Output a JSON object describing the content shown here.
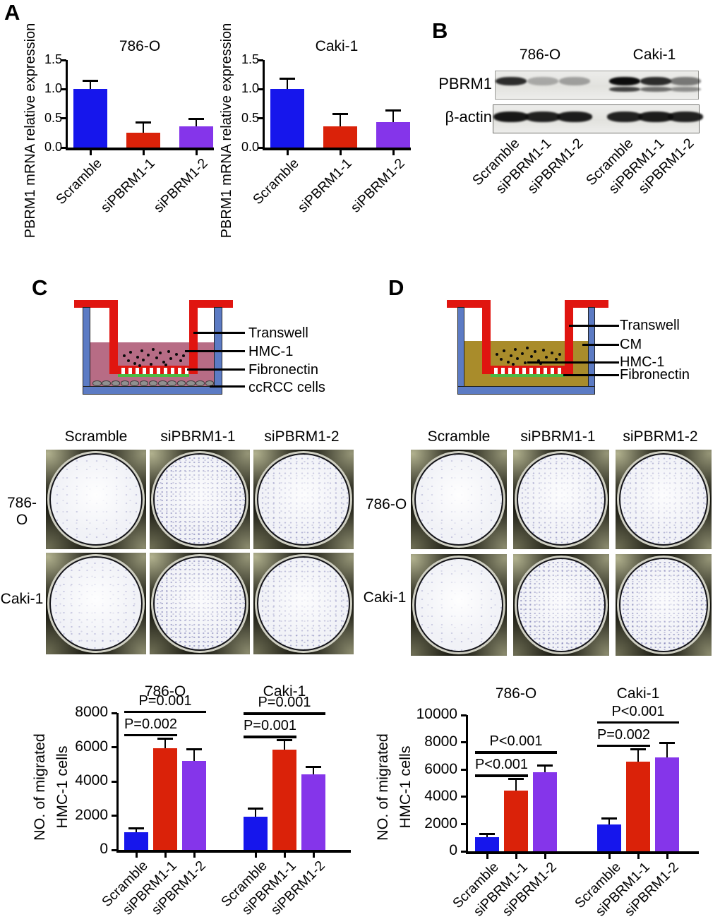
{
  "colors": {
    "bar_blue": "#1616ec",
    "bar_red": "#da2209",
    "bar_purple": "#8535ea",
    "well_blue": "#5c7bc4",
    "insert_red": "#e01510",
    "medium_pink": "#b76c85",
    "medium_cm": "#a98c2b",
    "fibronectin_green": "#4cb944",
    "ccrcc_gray": "#909090"
  },
  "panels": {
    "A": {
      "label": "A"
    },
    "B": {
      "label": "B",
      "cell_lines": [
        "786-O",
        "Caki-1"
      ],
      "blot_rows": [
        {
          "label": "PBRM1",
          "bands": [
            [
              0.85
            ],
            [
              0.28
            ],
            [
              0.32
            ],
            [
              1.0,
              0.75
            ],
            [
              0.85,
              0.55
            ],
            [
              0.5,
              0.4
            ]
          ]
        },
        {
          "label": "β-actin",
          "bands": [
            [
              0.95
            ],
            [
              0.9
            ],
            [
              0.92
            ],
            [
              0.9
            ],
            [
              0.93
            ],
            [
              0.9
            ]
          ]
        }
      ],
      "lane_labels": [
        "Scramble",
        "siPBRM1-1",
        "siPBRM1-2",
        "Scramble",
        "siPBRM1-1",
        "siPBRM1-2"
      ]
    },
    "C": {
      "label": "C",
      "diagram_labels": [
        "Transwell",
        "HMC-1",
        "Fibronectin",
        "ccRCC cells"
      ],
      "grid": {
        "col_headers": [
          "Scramble",
          "siPBRM1-1",
          "siPBRM1-2"
        ],
        "row_labels": [
          "786-O",
          "Caki-1"
        ],
        "well_densities": [
          [
            "low",
            "high",
            "medium-high"
          ],
          [
            "medium",
            "high",
            "medium-high"
          ]
        ]
      }
    },
    "D": {
      "label": "D",
      "diagram_labels": [
        "Transwell",
        "CM",
        "HMC-1",
        "Fibronectin"
      ],
      "grid": {
        "col_headers": [
          "Scramble",
          "siPBRM1-1",
          "siPBRM1-2"
        ],
        "row_labels": [
          "786-O",
          "Caki-1"
        ],
        "well_densities": [
          [
            "low",
            "medium-high",
            "medium-high"
          ],
          [
            "low",
            "high",
            "high"
          ]
        ]
      }
    }
  },
  "chart_data": [
    {
      "id": "A-786-O",
      "type": "bar",
      "title": "786-O",
      "ylabel": "PBRM1 mRNA relative expression",
      "ylim": [
        0,
        1.5
      ],
      "yticks": [
        0,
        0.5,
        1,
        1.5
      ],
      "ytick_labels": [
        "0.0",
        "0.5",
        "1.0",
        "1.5"
      ],
      "bar_colors": [
        "#1616ec",
        "#da2209",
        "#8535ea"
      ],
      "groups": [
        {
          "categories": [
            "Scramble",
            "siPBRM1-1",
            "siPBRM1-2"
          ],
          "values": [
            1.0,
            0.25,
            0.36
          ],
          "errors": [
            0.13,
            0.16,
            0.11
          ]
        }
      ]
    },
    {
      "id": "A-Caki-1",
      "type": "bar",
      "title": "Caki-1",
      "ylabel": "PBRM1 mRNA relative expression",
      "ylim": [
        0,
        1.5
      ],
      "yticks": [
        0,
        0.5,
        1,
        1.5
      ],
      "ytick_labels": [
        "0.0",
        "0.5",
        "1.0",
        "1.5"
      ],
      "bar_colors": [
        "#1616ec",
        "#da2209",
        "#8535ea"
      ],
      "groups": [
        {
          "categories": [
            "Scramble",
            "siPBRM1-1",
            "siPBRM1-2"
          ],
          "values": [
            1.0,
            0.36,
            0.43
          ],
          "errors": [
            0.16,
            0.2,
            0.19
          ]
        }
      ]
    },
    {
      "id": "C-migration",
      "type": "grouped-bar",
      "ylabel_lines": [
        "NO. of migrated",
        "HMC-1 cells"
      ],
      "ylim": [
        0,
        8000
      ],
      "yticks": [
        0,
        2000,
        4000,
        6000,
        8000
      ],
      "ytick_labels": [
        "0",
        "2000",
        "4000",
        "6000",
        "8000"
      ],
      "bar_colors": [
        "#1616ec",
        "#da2209",
        "#8535ea"
      ],
      "groups": [
        {
          "title": "786-O",
          "categories": [
            "Scramble",
            "siPBRM1-1",
            "siPBRM1-2"
          ],
          "values": [
            1050,
            5950,
            5200
          ],
          "errors": [
            150,
            500,
            610
          ],
          "sig": [
            {
              "text": "P=0.001",
              "span": [
                0,
                2
              ]
            },
            {
              "text": "P=0.002",
              "span": [
                0,
                1
              ]
            }
          ]
        },
        {
          "title": "Caki-1",
          "categories": [
            "Scramble",
            "siPBRM1-1",
            "siPBRM1-2"
          ],
          "values": [
            1950,
            5850,
            4400
          ],
          "errors": [
            400,
            500,
            400
          ],
          "sig": [
            {
              "text": "P=0.001",
              "span": [
                0,
                2
              ]
            },
            {
              "text": "P=0.001",
              "span": [
                0,
                1
              ]
            }
          ]
        }
      ]
    },
    {
      "id": "D-migration",
      "type": "grouped-bar",
      "ylabel_lines": [
        "NO. of migrated",
        "HMC-1 cells"
      ],
      "ylim": [
        0,
        10000
      ],
      "yticks": [
        0,
        2000,
        4000,
        6000,
        8000,
        10000
      ],
      "ytick_labels": [
        "0",
        "2000",
        "4000",
        "6000",
        "8000",
        "10000"
      ],
      "bar_colors": [
        "#1616ec",
        "#da2209",
        "#8535ea"
      ],
      "groups": [
        {
          "title": "786-O",
          "categories": [
            "Scramble",
            "siPBRM1-1",
            "siPBRM1-2"
          ],
          "values": [
            1050,
            4450,
            5780
          ],
          "errors": [
            150,
            760,
            460
          ],
          "sig": [
            {
              "text": "P<0.001",
              "span": [
                0,
                2
              ]
            },
            {
              "text": "P<0.001",
              "span": [
                0,
                1
              ]
            }
          ]
        },
        {
          "title": "Caki-1",
          "categories": [
            "Scramble",
            "siPBRM1-1",
            "siPBRM1-2"
          ],
          "values": [
            1950,
            6600,
            6900
          ],
          "errors": [
            400,
            810,
            960
          ],
          "sig": [
            {
              "text": "P<0.001",
              "span": [
                0,
                2
              ]
            },
            {
              "text": "P=0.002",
              "span": [
                0,
                1
              ]
            }
          ]
        }
      ]
    }
  ]
}
